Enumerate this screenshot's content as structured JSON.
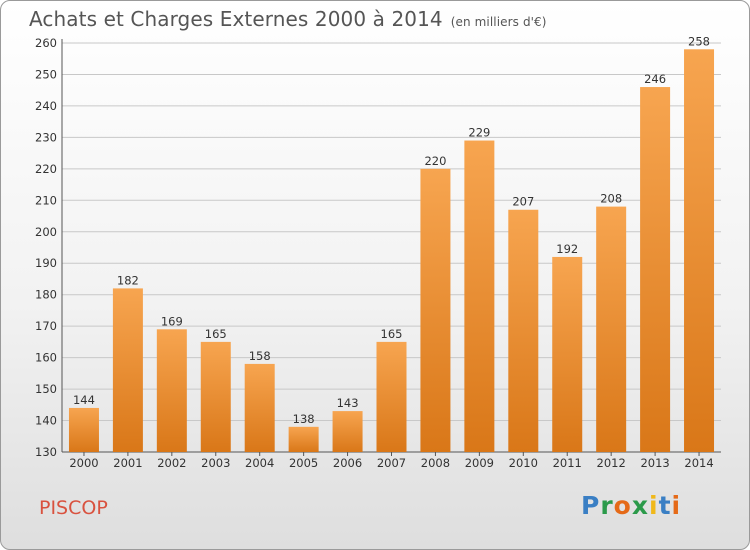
{
  "title": "Achats et Charges Externes 2000 à 2014",
  "subtitle": "(en milliers d'€)",
  "place_name": "PISCOP",
  "logo_text": "Proxiti",
  "colors": {
    "bar_light": "#f7a550",
    "bar_dark": "#d97718",
    "accent": "#d9523f"
  },
  "chart_data": {
    "type": "bar",
    "title": "Achats et Charges Externes 2000 à 2014",
    "subtitle": "(en milliers d'€)",
    "categories": [
      "2000",
      "2001",
      "2002",
      "2003",
      "2004",
      "2005",
      "2006",
      "2007",
      "2008",
      "2009",
      "2010",
      "2011",
      "2012",
      "2013",
      "2014"
    ],
    "values": [
      144,
      182,
      169,
      165,
      158,
      138,
      143,
      165,
      220,
      229,
      207,
      192,
      208,
      246,
      258
    ],
    "ylim": [
      130,
      260
    ],
    "yticks": [
      130,
      140,
      150,
      160,
      170,
      180,
      190,
      200,
      210,
      220,
      230,
      240,
      250,
      260
    ],
    "grid": true,
    "xlabel": "",
    "ylabel": ""
  }
}
